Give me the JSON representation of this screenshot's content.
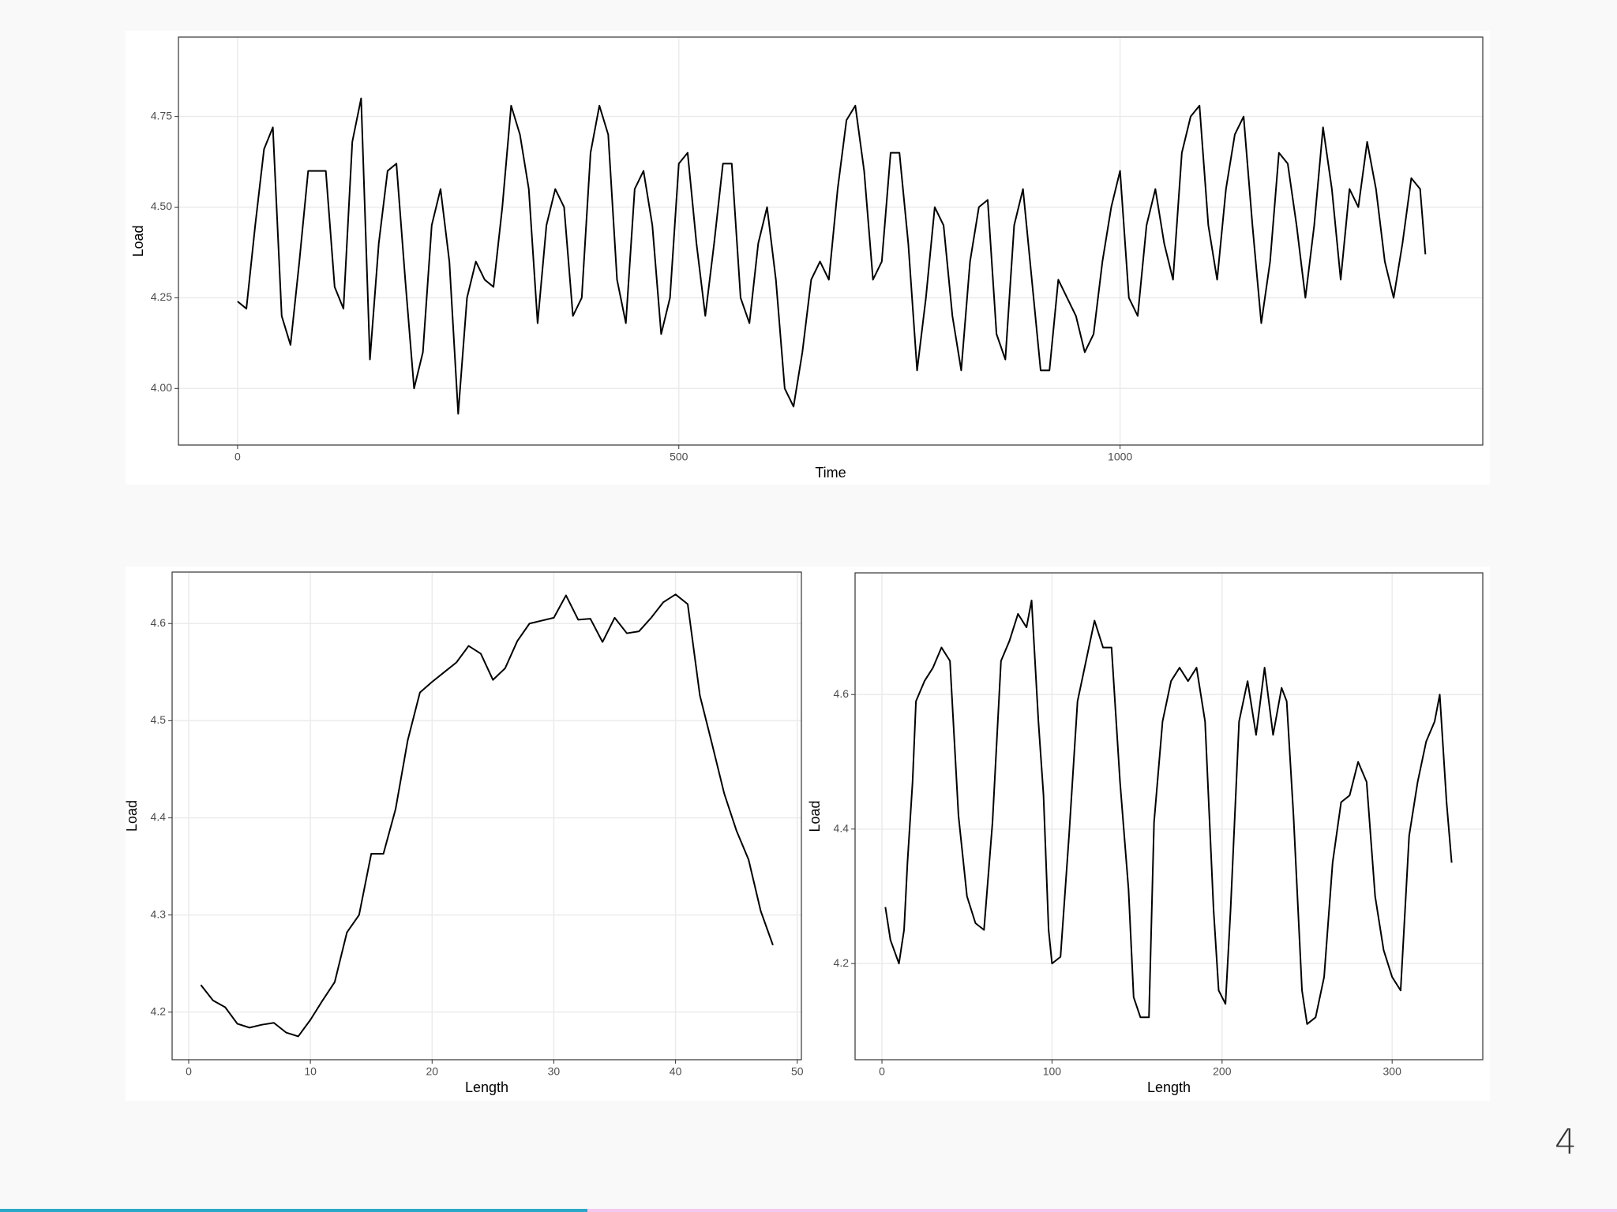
{
  "page_number": "4",
  "chart_data": [
    {
      "type": "line",
      "x_label": "Time",
      "y_label": "Load",
      "x": [
        0,
        10,
        20,
        30,
        40,
        50,
        60,
        70,
        80,
        90,
        100,
        110,
        120,
        130,
        140,
        150,
        160,
        170,
        180,
        190,
        200,
        210,
        220,
        230,
        240,
        250,
        260,
        270,
        280,
        290,
        300,
        310,
        320,
        330,
        340,
        350,
        360,
        370,
        380,
        390,
        400,
        410,
        420,
        430,
        440,
        450,
        460,
        470,
        480,
        490,
        500,
        510,
        520,
        530,
        540,
        550,
        560,
        570,
        580,
        590,
        600,
        610,
        620,
        630,
        640,
        650,
        660,
        670,
        680,
        690,
        700,
        710,
        720,
        730,
        740,
        750,
        760,
        770,
        780,
        790,
        800,
        810,
        820,
        830,
        840,
        850,
        860,
        870,
        880,
        890,
        900,
        910,
        920,
        930,
        940,
        950,
        960,
        970,
        980,
        990,
        1000,
        1010,
        1020,
        1030,
        1040,
        1050,
        1060,
        1070,
        1080,
        1090,
        1100,
        1110,
        1120,
        1130,
        1140,
        1150,
        1160,
        1170,
        1180,
        1190,
        1200,
        1210,
        1220,
        1230,
        1240,
        1250,
        1260,
        1270,
        1280,
        1290,
        1300,
        1310,
        1320,
        1330,
        1340,
        1346
      ],
      "values": [
        4.24,
        4.22,
        4.45,
        4.66,
        4.72,
        4.2,
        4.12,
        4.35,
        4.6,
        4.6,
        4.6,
        4.28,
        4.22,
        4.68,
        4.8,
        4.08,
        4.4,
        4.6,
        4.62,
        4.3,
        4.0,
        4.1,
        4.45,
        4.55,
        4.35,
        3.93,
        4.25,
        4.35,
        4.3,
        4.28,
        4.5,
        4.78,
        4.7,
        4.55,
        4.18,
        4.45,
        4.55,
        4.5,
        4.2,
        4.25,
        4.65,
        4.78,
        4.7,
        4.3,
        4.18,
        4.55,
        4.6,
        4.45,
        4.15,
        4.25,
        4.62,
        4.65,
        4.4,
        4.2,
        4.4,
        4.62,
        4.62,
        4.25,
        4.18,
        4.4,
        4.5,
        4.3,
        4.0,
        3.95,
        4.1,
        4.3,
        4.35,
        4.3,
        4.55,
        4.74,
        4.78,
        4.6,
        4.3,
        4.35,
        4.65,
        4.65,
        4.4,
        4.05,
        4.25,
        4.5,
        4.45,
        4.2,
        4.05,
        4.35,
        4.5,
        4.52,
        4.15,
        4.08,
        4.45,
        4.55,
        4.3,
        4.05,
        4.05,
        4.3,
        4.25,
        4.2,
        4.1,
        4.15,
        4.35,
        4.5,
        4.6,
        4.25,
        4.2,
        4.45,
        4.55,
        4.4,
        4.3,
        4.65,
        4.75,
        4.78,
        4.45,
        4.3,
        4.55,
        4.7,
        4.75,
        4.45,
        4.18,
        4.35,
        4.65,
        4.62,
        4.45,
        4.25,
        4.45,
        4.72,
        4.55,
        4.3,
        4.55,
        4.5,
        4.68,
        4.55,
        4.35,
        4.25,
        4.4,
        4.58,
        4.55,
        4.37
      ],
      "color": "#000000",
      "grid": true,
      "xlim": [
        -67,
        1411
      ],
      "ylim": [
        3.844,
        4.969
      ],
      "xticks": [
        0,
        500,
        1000
      ],
      "yticks": [
        {
          "value": 4,
          "label": "4.00"
        },
        4.25,
        {
          "value": 4.5,
          "label": "4.50"
        },
        4.75
      ]
    },
    {
      "type": "line",
      "x_label": "Length",
      "y_label": "Load",
      "x": [
        1,
        2,
        3,
        4,
        5,
        6,
        7,
        8,
        9,
        10,
        11,
        12,
        13,
        14,
        15,
        16,
        17,
        18,
        19,
        20,
        21,
        22,
        23,
        24,
        25,
        26,
        27,
        28,
        29,
        30,
        31,
        32,
        33,
        34,
        35,
        36,
        37,
        38,
        39,
        40,
        41,
        42,
        43,
        44,
        45,
        46,
        47,
        48
      ],
      "values": [
        4.228,
        4.212,
        4.205,
        4.188,
        4.184,
        4.187,
        4.189,
        4.179,
        4.175,
        4.192,
        4.212,
        4.231,
        4.282,
        4.3,
        4.363,
        4.363,
        4.409,
        4.48,
        4.529,
        4.54,
        4.55,
        4.56,
        4.577,
        4.569,
        4.542,
        4.554,
        4.582,
        4.6,
        4.603,
        4.606,
        4.629,
        4.604,
        4.605,
        4.581,
        4.606,
        4.59,
        4.592,
        4.606,
        4.622,
        4.63,
        4.62,
        4.526,
        4.476,
        4.425,
        4.387,
        4.357,
        4.304,
        4.269
      ],
      "color": "#000000",
      "grid": true,
      "xlim": [
        -1.36,
        50.34
      ],
      "ylim": [
        4.151,
        4.653
      ],
      "xticks": [
        0,
        10,
        20,
        30,
        40,
        50
      ],
      "yticks": [
        4.2,
        4.3,
        4.4,
        4.5,
        4.6
      ]
    },
    {
      "type": "line",
      "x_label": "Length",
      "y_label": "Load",
      "x": [
        2,
        5,
        10,
        13,
        15,
        18,
        20,
        25,
        30,
        35,
        40,
        45,
        50,
        55,
        60,
        65,
        70,
        75,
        80,
        85,
        88,
        92,
        95,
        98,
        100,
        105,
        110,
        115,
        120,
        125,
        130,
        135,
        140,
        145,
        148,
        152,
        157,
        160,
        165,
        170,
        175,
        180,
        185,
        190,
        195,
        198,
        202,
        205,
        210,
        215,
        220,
        225,
        230,
        235,
        238,
        242,
        247,
        250,
        255,
        260,
        265,
        270,
        275,
        280,
        285,
        290,
        295,
        300,
        305,
        310,
        315,
        320,
        325,
        328,
        332,
        335
      ],
      "values": [
        4.284,
        4.235,
        4.2,
        4.25,
        4.35,
        4.47,
        4.59,
        4.62,
        4.64,
        4.67,
        4.65,
        4.42,
        4.3,
        4.26,
        4.25,
        4.41,
        4.65,
        4.68,
        4.72,
        4.7,
        4.74,
        4.56,
        4.45,
        4.25,
        4.2,
        4.21,
        4.39,
        4.59,
        4.65,
        4.71,
        4.67,
        4.67,
        4.47,
        4.31,
        4.15,
        4.12,
        4.12,
        4.41,
        4.56,
        4.62,
        4.64,
        4.62,
        4.64,
        4.56,
        4.28,
        4.16,
        4.14,
        4.28,
        4.56,
        4.62,
        4.54,
        4.64,
        4.54,
        4.61,
        4.59,
        4.42,
        4.16,
        4.11,
        4.12,
        4.18,
        4.35,
        4.44,
        4.45,
        4.5,
        4.47,
        4.3,
        4.22,
        4.18,
        4.16,
        4.39,
        4.47,
        4.53,
        4.56,
        4.6,
        4.44,
        4.35
      ],
      "color": "#000000",
      "grid": true,
      "xlim": [
        -15.8,
        353.3
      ],
      "ylim": [
        4.057,
        4.781
      ],
      "xticks": [
        0,
        100,
        200,
        300
      ],
      "yticks": [
        4.2,
        4.4,
        4.6
      ]
    }
  ]
}
